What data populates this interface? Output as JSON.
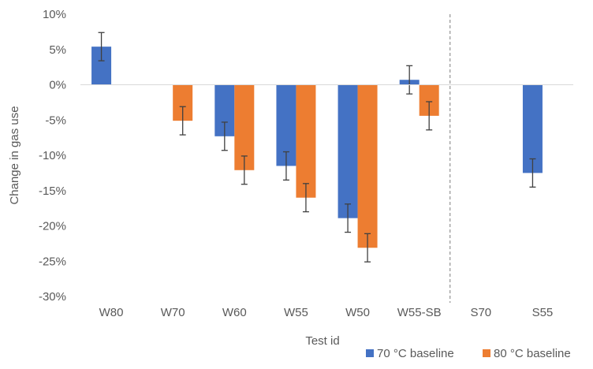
{
  "chart_data": {
    "type": "bar",
    "title": "",
    "xlabel": "Test id",
    "ylabel": "Change in gas use",
    "categories": [
      "W80",
      "W70",
      "W60",
      "W55",
      "W50",
      "W55-SB",
      "S70",
      "S55"
    ],
    "series": [
      {
        "name": "70 °C baseline",
        "color": "#4472C4",
        "values": [
          5.4,
          null,
          -7.3,
          -11.5,
          -18.9,
          0.7,
          null,
          -12.5
        ],
        "error": [
          2.0,
          null,
          2.0,
          2.0,
          2.0,
          2.0,
          null,
          2.0
        ]
      },
      {
        "name": "80 °C baseline",
        "color": "#ED7D31",
        "values": [
          null,
          -5.1,
          -12.1,
          -16.0,
          -23.1,
          -4.4,
          null,
          null
        ],
        "error": [
          null,
          2.0,
          2.0,
          2.0,
          2.0,
          2.0,
          null,
          null
        ]
      }
    ],
    "ylim": [
      -30,
      10
    ],
    "ytick_step": 5,
    "ytick_format": "percent",
    "separator_after_category": "W55-SB",
    "grid": false,
    "legend": "bottom-right"
  }
}
